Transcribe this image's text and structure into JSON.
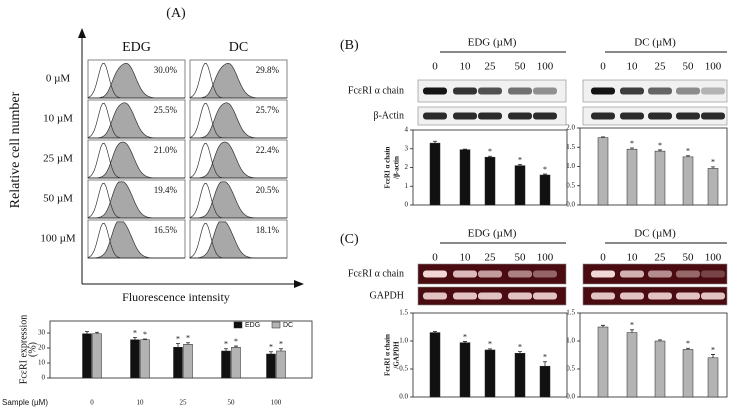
{
  "panels": [
    "(A)",
    "(B)",
    "(C)"
  ],
  "flow": {
    "column_headers": [
      "EDG",
      "DC"
    ],
    "row_labels": [
      "0 µM",
      "10 µM",
      "25 µM",
      "50 µM",
      "100 µM"
    ],
    "percentages": [
      [
        "30.0%",
        "29.8%"
      ],
      [
        "25.5%",
        "25.7%"
      ],
      [
        "21.0%",
        "22.4%"
      ],
      [
        "19.4%",
        "20.5%"
      ],
      [
        "16.5%",
        "18.1%"
      ]
    ],
    "y_label": "Relative cell number",
    "x_label": "Fluorescence intensity"
  },
  "western": {
    "groups": [
      {
        "header": "EDG (µM)",
        "lanes": [
          "0",
          "10",
          "25",
          "50",
          "100"
        ]
      },
      {
        "header": "DC (µM)",
        "lanes": [
          "0",
          "10",
          "25",
          "50",
          "100"
        ]
      }
    ],
    "rows": [
      "FcεRI α chain",
      "β-Actin"
    ]
  },
  "rt_pcr": {
    "groups": [
      {
        "header": "EDG (µM)",
        "lanes": [
          "0",
          "10",
          "25",
          "50",
          "100"
        ]
      },
      {
        "header": "DC (µM)",
        "lanes": [
          "0",
          "10",
          "25",
          "50",
          "100"
        ]
      }
    ],
    "rows": [
      "FcεRI α chain",
      "GAPDH"
    ]
  },
  "chart_data": [
    {
      "type": "bar",
      "categories": [
        "0",
        "10",
        "25",
        "50",
        "100"
      ],
      "x_label": "Sample (µM)",
      "y_label": [
        "FcεRI expression",
        "(%)"
      ],
      "ylim": [
        0,
        38
      ],
      "yticks": [
        0,
        10,
        20,
        30
      ],
      "legend": "upper right",
      "series": [
        {
          "name": "EDG",
          "color": "#111111",
          "values": [
            29.5,
            25.5,
            20.5,
            18,
            16
          ],
          "errors": [
            1.5,
            1.5,
            2.5,
            1.5,
            1.5
          ],
          "significance": [
            null,
            "*",
            "*",
            "*",
            "*"
          ]
        },
        {
          "name": "DC",
          "color": "#b3b3b3",
          "values": [
            29.5,
            25.5,
            22.5,
            20.5,
            18
          ],
          "errors": [
            1,
            0.5,
            1,
            0.8,
            1.5
          ],
          "significance": [
            null,
            "*",
            "*",
            "*",
            "*"
          ]
        }
      ]
    },
    {
      "type": "bar",
      "y_label": [
        "FcεRI α chain",
        "/β-actin"
      ],
      "ylim": [
        0,
        4
      ],
      "yticks": [
        0,
        1,
        2,
        3,
        4
      ],
      "series": [
        {
          "color": "#111111",
          "values": [
            3.3,
            2.95,
            2.55,
            2.1,
            1.6
          ],
          "errors": [
            0.1,
            0.03,
            0.05,
            0.06,
            0.05
          ],
          "significance": [
            null,
            null,
            "*",
            "*",
            "*"
          ]
        }
      ]
    },
    {
      "type": "bar",
      "ylim": [
        0,
        2
      ],
      "yticks": [
        {
          "value": 0,
          "label": "0.0"
        },
        0.5,
        {
          "value": 1,
          "label": "1.0"
        },
        1.5,
        {
          "value": 2,
          "label": "2.0"
        }
      ],
      "series": [
        {
          "color": "#b3b3b3",
          "values": [
            1.75,
            1.45,
            1.4,
            1.25,
            0.95
          ],
          "errors": [
            0.02,
            0.03,
            0.03,
            0.03,
            0.04
          ],
          "significance": [
            null,
            "*",
            "*",
            "*",
            "*"
          ]
        }
      ]
    },
    {
      "type": "bar",
      "y_label": [
        "FcεRI α chain",
        "/GAPDH"
      ],
      "ylim": [
        0,
        1.5
      ],
      "yticks": [
        {
          "value": 0,
          "label": "0.0"
        },
        0.5,
        {
          "value": 1,
          "label": "1.0"
        },
        1.5
      ],
      "series": [
        {
          "color": "#111111",
          "values": [
            1.15,
            0.97,
            0.84,
            0.78,
            0.55
          ],
          "errors": [
            0.02,
            0.02,
            0.02,
            0.03,
            0.08
          ],
          "significance": [
            null,
            "*",
            "*",
            "*",
            "*"
          ]
        }
      ]
    },
    {
      "type": "bar",
      "ylim": [
        0,
        1.5
      ],
      "yticks": [
        {
          "value": 0,
          "label": "0.0"
        },
        0.5,
        {
          "value": 1,
          "label": "1.0"
        },
        1.5
      ],
      "series": [
        {
          "color": "#b3b3b3",
          "values": [
            1.25,
            1.15,
            1,
            0.85,
            0.7
          ],
          "errors": [
            0.03,
            0.05,
            0.02,
            0.02,
            0.06
          ],
          "significance": [
            null,
            "*",
            null,
            "*",
            "*"
          ]
        }
      ]
    }
  ]
}
